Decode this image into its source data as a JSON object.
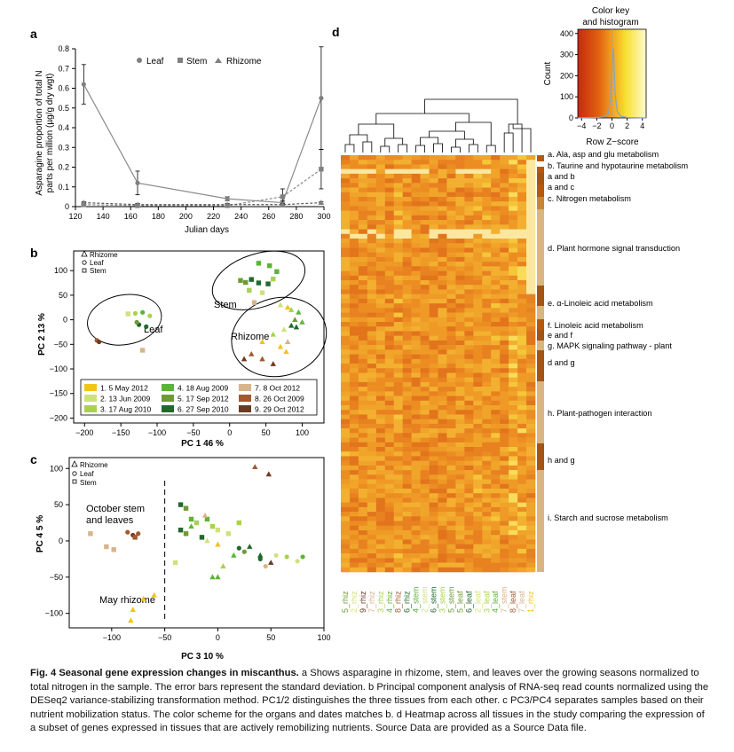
{
  "panels": {
    "a": {
      "letter": "a",
      "legend": [
        "Leaf",
        "Stem",
        "Rhizome"
      ],
      "ylabel_line1": "Asparagine proportion of total N",
      "ylabel_line2": "parts per million (µg/g dry wgt)",
      "xlabel": "Julian days",
      "xticks": [
        "120",
        "140",
        "160",
        "180",
        "200",
        "220",
        "240",
        "260",
        "280",
        "300"
      ],
      "yticks": [
        "0",
        "0.1",
        "0.2",
        "0.3",
        "0.4",
        "0.5",
        "0.6",
        "0.7",
        "0.8"
      ]
    },
    "b": {
      "letter": "b",
      "legend": [
        "Rhizome",
        "Leaf",
        "Stem"
      ],
      "labels": {
        "leaf": "Leaf",
        "stem": "Stem",
        "rhizome": "Rhizome"
      },
      "ylabel": "PC 2 13 %",
      "xlabel": "PC 1 46 %",
      "xticks": [
        "−200",
        "−150",
        "−100",
        "−50",
        "0",
        "50",
        "100"
      ],
      "yticks": [
        "100",
        "50",
        "0",
        "−50",
        "−100",
        "−150",
        "−200"
      ],
      "date_legend": [
        {
          "label": "1. 5 May 2012",
          "color": "#f2c418"
        },
        {
          "label": "2. 13 Jun 2009",
          "color": "#cfe27a"
        },
        {
          "label": "3. 17 Aug 2010",
          "color": "#a8d24a"
        },
        {
          "label": "4. 18 Aug 2009",
          "color": "#5cb435"
        },
        {
          "label": "5. 17 Sep 2012",
          "color": "#6e9a35"
        },
        {
          "label": "6. 27 Sep 2010",
          "color": "#1f6a2c"
        },
        {
          "label": "7. 8 Oct 2012",
          "color": "#d8b48a"
        },
        {
          "label": "8. 26 Oct 2009",
          "color": "#a3582e"
        },
        {
          "label": "9. 29 Oct 2012",
          "color": "#6b3a22"
        }
      ]
    },
    "c": {
      "letter": "c",
      "legend": [
        "Rhizome",
        "Leaf",
        "Stem"
      ],
      "annot_oct_line1": "October stem",
      "annot_oct_line2": "and leaves",
      "annot_may": "May rhizome",
      "ylabel": "PC 4 5 %",
      "xlabel": "PC 3 10 %",
      "xticks": [
        "−100",
        "−50",
        "0",
        "50",
        "100"
      ],
      "yticks": [
        "100",
        "50",
        "0",
        "−50",
        "−100"
      ]
    },
    "d": {
      "letter": "d",
      "key_title_line1": "Color key",
      "key_title_line2": "and histogram",
      "key_ylabel": "Count",
      "key_xlabel": "Row Z−score",
      "key_xticks": [
        "−4",
        "−2",
        "0",
        "2",
        "4"
      ],
      "key_yticks": [
        "0",
        "100",
        "200",
        "300",
        "400"
      ],
      "pathways": [
        "a. Ala, asp and glu metabolism",
        "b. Taurine and hypotaurine metabolism",
        "a and b",
        "a and c",
        "c. Nitrogen metabolism",
        "d. Plant hormone signal transduction",
        "e. α-Linoleic acid metabolism",
        "f. Linoleic acid metabolism",
        "e and f",
        "g. MAPK signaling pathway - plant",
        "d and g",
        "h. Plant-pathogen interaction",
        "h and g",
        "i. Starch and sucrose metabolism"
      ],
      "columns": [
        {
          "label": "5_rhiz",
          "color": "#6e9a35"
        },
        {
          "label": "2_rhiz",
          "color": "#cfe27a"
        },
        {
          "label": "9_rhiz",
          "color": "#6b3a22"
        },
        {
          "label": "7_rhiz",
          "color": "#d8b48a"
        },
        {
          "label": "3_rhiz",
          "color": "#a8d24a"
        },
        {
          "label": "4_rhiz",
          "color": "#5cb435"
        },
        {
          "label": "8_rhiz",
          "color": "#a3582e"
        },
        {
          "label": "6_rhiz",
          "color": "#1f6a2c"
        },
        {
          "label": "4_stem",
          "color": "#5cb435"
        },
        {
          "label": "2_stem",
          "color": "#cfe27a"
        },
        {
          "label": "6_stem",
          "color": "#1f6a2c"
        },
        {
          "label": "3_stem",
          "color": "#a8d24a"
        },
        {
          "label": "5_stem",
          "color": "#6e9a35"
        },
        {
          "label": "5_leaf",
          "color": "#6e9a35"
        },
        {
          "label": "6_leaf",
          "color": "#1f6a2c"
        },
        {
          "label": "2_leaf",
          "color": "#cfe27a"
        },
        {
          "label": "3_leaf",
          "color": "#a8d24a"
        },
        {
          "label": "4_leaf",
          "color": "#5cb435"
        },
        {
          "label": "7_stem",
          "color": "#d8b48a"
        },
        {
          "label": "8_leaf",
          "color": "#a3582e"
        },
        {
          "label": "7_leaf",
          "color": "#d8b48a"
        },
        {
          "label": "1_rhiz",
          "color": "#f2c418"
        }
      ]
    }
  },
  "caption": {
    "title": "Fig. 4 Seasonal gene expression changes in miscanthus.",
    "body": " a Shows asparagine in rhizome, stem, and leaves over the growing seasons normalized to total nitrogen in the sample. The error bars represent the standard deviation. b Principal component analysis of RNA-seq read counts normalized using the DESeq2 variance-stabilizing transformation method. PC1/2 distinguishes the three tissues from each other. c PC3/PC4 separates samples based on their nutrient mobilization status. The color scheme for the organs and dates matches b. d Heatmap across all tissues in the study comparing the expression of a subset of genes expressed in tissues that are actively remobilizing nutrients. Source Data are provided as a Source Data file."
  },
  "chart_data": [
    {
      "type": "line",
      "xlabel": "Julian days",
      "ylabel": "Asparagine proportion of total N parts per million (µg/g dry wgt)",
      "xlim": [
        120,
        300
      ],
      "ylim": [
        0,
        0.8
      ],
      "series": [
        {
          "name": "Leaf",
          "x": [
            126,
            165,
            230,
            270,
            298
          ],
          "values": [
            0.62,
            0.12,
            0.04,
            0.02,
            0.55
          ],
          "err": [
            0.1,
            0.06,
            0.01,
            0.01,
            0.26
          ]
        },
        {
          "name": "Stem",
          "x": [
            126,
            165,
            230,
            270,
            298
          ],
          "values": [
            0.01,
            0.005,
            0.005,
            0.05,
            0.19
          ],
          "err": [
            0.01,
            0.005,
            0.005,
            0.04,
            0.1
          ]
        },
        {
          "name": "Rhizome",
          "x": [
            126,
            165,
            230,
            270,
            298
          ],
          "values": [
            0.02,
            0.01,
            0.01,
            0.01,
            0.02
          ],
          "err": [
            0.005,
            0.005,
            0.005,
            0.005,
            0.005
          ]
        }
      ]
    },
    {
      "type": "scatter",
      "xlabel": "PC 1 46 %",
      "ylabel": "PC 2 13 %",
      "xlim": [
        -215,
        130
      ],
      "ylim": [
        -210,
        140
      ],
      "points": [
        {
          "x": -130,
          "y": 13,
          "shape": "leaf",
          "g": 3
        },
        {
          "x": -120,
          "y": 15,
          "shape": "leaf",
          "g": 4
        },
        {
          "x": -110,
          "y": 8,
          "shape": "leaf",
          "g": 3
        },
        {
          "x": -140,
          "y": 12,
          "shape": "stem",
          "g": 2
        },
        {
          "x": -125,
          "y": -10,
          "shape": "leaf",
          "g": 6
        },
        {
          "x": -115,
          "y": -14,
          "shape": "leaf",
          "g": 6
        },
        {
          "x": -128,
          "y": -5,
          "shape": "leaf",
          "g": 5
        },
        {
          "x": -183,
          "y": -42,
          "shape": "leaf",
          "g": 8
        },
        {
          "x": -180,
          "y": -45,
          "shape": "leaf",
          "g": 9
        },
        {
          "x": -120,
          "y": -62,
          "shape": "stem",
          "g": 7
        },
        {
          "x": 40,
          "y": 115,
          "shape": "stem",
          "g": 4
        },
        {
          "x": 55,
          "y": 110,
          "shape": "stem",
          "g": 4
        },
        {
          "x": 65,
          "y": 98,
          "shape": "stem",
          "g": 4
        },
        {
          "x": 15,
          "y": 80,
          "shape": "stem",
          "g": 5
        },
        {
          "x": 22,
          "y": 76,
          "shape": "stem",
          "g": 5
        },
        {
          "x": 30,
          "y": 82,
          "shape": "stem",
          "g": 6
        },
        {
          "x": 40,
          "y": 75,
          "shape": "stem",
          "g": 6
        },
        {
          "x": 53,
          "y": 73,
          "shape": "stem",
          "g": 6
        },
        {
          "x": 60,
          "y": 83,
          "shape": "stem",
          "g": 3
        },
        {
          "x": 27,
          "y": 60,
          "shape": "stem",
          "g": 3
        },
        {
          "x": 45,
          "y": 55,
          "shape": "stem",
          "g": 2
        },
        {
          "x": 34,
          "y": 35,
          "shape": "stem",
          "g": 7
        },
        {
          "x": 70,
          "y": 30,
          "shape": "rhiz",
          "g": 2
        },
        {
          "x": 80,
          "y": 25,
          "shape": "rhiz",
          "g": 1
        },
        {
          "x": 85,
          "y": 20,
          "shape": "rhiz",
          "g": 3
        },
        {
          "x": 95,
          "y": 15,
          "shape": "rhiz",
          "g": 4
        },
        {
          "x": 90,
          "y": 0,
          "shape": "rhiz",
          "g": 5
        },
        {
          "x": 100,
          "y": -5,
          "shape": "rhiz",
          "g": 4
        },
        {
          "x": 85,
          "y": -12,
          "shape": "rhiz",
          "g": 6
        },
        {
          "x": 92,
          "y": -15,
          "shape": "rhiz",
          "g": 6
        },
        {
          "x": 75,
          "y": -20,
          "shape": "rhiz",
          "g": 2
        },
        {
          "x": 60,
          "y": -30,
          "shape": "rhiz",
          "g": 3
        },
        {
          "x": 45,
          "y": -45,
          "shape": "rhiz",
          "g": 1
        },
        {
          "x": 70,
          "y": -55,
          "shape": "rhiz",
          "g": 1
        },
        {
          "x": 78,
          "y": -65,
          "shape": "rhiz",
          "g": 1
        },
        {
          "x": 30,
          "y": -70,
          "shape": "rhiz",
          "g": 8
        },
        {
          "x": 20,
          "y": -80,
          "shape": "rhiz",
          "g": 9
        },
        {
          "x": 45,
          "y": -80,
          "shape": "rhiz",
          "g": 8
        },
        {
          "x": 60,
          "y": -90,
          "shape": "rhiz",
          "g": 9
        },
        {
          "x": 80,
          "y": -45,
          "shape": "rhiz",
          "g": 7
        }
      ]
    },
    {
      "type": "scatter",
      "xlabel": "PC 3 10 %",
      "ylabel": "PC 4 5 %",
      "xlim": [
        -140,
        100
      ],
      "ylim": [
        -120,
        115
      ],
      "points": [
        {
          "x": -120,
          "y": 10,
          "shape": "stem",
          "g": 7
        },
        {
          "x": -105,
          "y": -8,
          "shape": "stem",
          "g": 7
        },
        {
          "x": -98,
          "y": -12,
          "shape": "stem",
          "g": 7
        },
        {
          "x": -85,
          "y": 12,
          "shape": "leaf",
          "g": 8
        },
        {
          "x": -80,
          "y": 8,
          "shape": "leaf",
          "g": 9
        },
        {
          "x": -75,
          "y": 10,
          "shape": "leaf",
          "g": 8
        },
        {
          "x": -78,
          "y": 5,
          "shape": "stem",
          "g": 8
        },
        {
          "x": -40,
          "y": -30,
          "shape": "stem",
          "g": 2
        },
        {
          "x": -80,
          "y": -95,
          "shape": "rhiz",
          "g": 1
        },
        {
          "x": -70,
          "y": -80,
          "shape": "rhiz",
          "g": 1
        },
        {
          "x": -60,
          "y": -75,
          "shape": "rhiz",
          "g": 1
        },
        {
          "x": -82,
          "y": -110,
          "shape": "rhiz",
          "g": 1
        },
        {
          "x": -35,
          "y": 50,
          "shape": "stem",
          "g": 6
        },
        {
          "x": -30,
          "y": 45,
          "shape": "stem",
          "g": 5
        },
        {
          "x": -25,
          "y": 30,
          "shape": "stem",
          "g": 4
        },
        {
          "x": -35,
          "y": 15,
          "shape": "stem",
          "g": 6
        },
        {
          "x": -30,
          "y": 10,
          "shape": "stem",
          "g": 5
        },
        {
          "x": -20,
          "y": 25,
          "shape": "stem",
          "g": 3
        },
        {
          "x": -10,
          "y": 30,
          "shape": "stem",
          "g": 4
        },
        {
          "x": -5,
          "y": 20,
          "shape": "stem",
          "g": 3
        },
        {
          "x": 0,
          "y": 15,
          "shape": "stem",
          "g": 2
        },
        {
          "x": -15,
          "y": 5,
          "shape": "stem",
          "g": 6
        },
        {
          "x": 10,
          "y": 10,
          "shape": "stem",
          "g": 2
        },
        {
          "x": 20,
          "y": 25,
          "shape": "stem",
          "g": 3
        },
        {
          "x": -25,
          "y": 20,
          "shape": "rhiz",
          "g": 4
        },
        {
          "x": -12,
          "y": 35,
          "shape": "rhiz",
          "g": 7
        },
        {
          "x": -10,
          "y": 0,
          "shape": "rhiz",
          "g": 2
        },
        {
          "x": 0,
          "y": -5,
          "shape": "rhiz",
          "g": 1
        },
        {
          "x": 5,
          "y": -35,
          "shape": "rhiz",
          "g": 3
        },
        {
          "x": 15,
          "y": -20,
          "shape": "rhiz",
          "g": 4
        },
        {
          "x": 30,
          "y": -8,
          "shape": "rhiz",
          "g": 6
        },
        {
          "x": 35,
          "y": 102,
          "shape": "rhiz",
          "g": 8
        },
        {
          "x": 48,
          "y": 92,
          "shape": "rhiz",
          "g": 9
        },
        {
          "x": 40,
          "y": -20,
          "shape": "rhiz",
          "g": 6
        },
        {
          "x": 50,
          "y": -30,
          "shape": "rhiz",
          "g": 9
        },
        {
          "x": -5,
          "y": -50,
          "shape": "rhiz",
          "g": 4
        },
        {
          "x": 0,
          "y": -50,
          "shape": "rhiz",
          "g": 4
        },
        {
          "x": 20,
          "y": -10,
          "shape": "leaf",
          "g": 6
        },
        {
          "x": 25,
          "y": -15,
          "shape": "leaf",
          "g": 5
        },
        {
          "x": 40,
          "y": -25,
          "shape": "leaf",
          "g": 6
        },
        {
          "x": 55,
          "y": -20,
          "shape": "leaf",
          "g": 2
        },
        {
          "x": 65,
          "y": -22,
          "shape": "leaf",
          "g": 3
        },
        {
          "x": 75,
          "y": -28,
          "shape": "leaf",
          "g": 2
        },
        {
          "x": 80,
          "y": -22,
          "shape": "leaf",
          "g": 4
        },
        {
          "x": 45,
          "y": -35,
          "shape": "leaf",
          "g": 7
        }
      ]
    },
    {
      "type": "heatmap",
      "xlabel": "",
      "ylabel": "",
      "color_scale": [
        "#c62a10",
        "#e06010",
        "#f2a020",
        "#f7e030",
        "#fffbd0"
      ],
      "zlim": [
        -4,
        4
      ]
    }
  ]
}
